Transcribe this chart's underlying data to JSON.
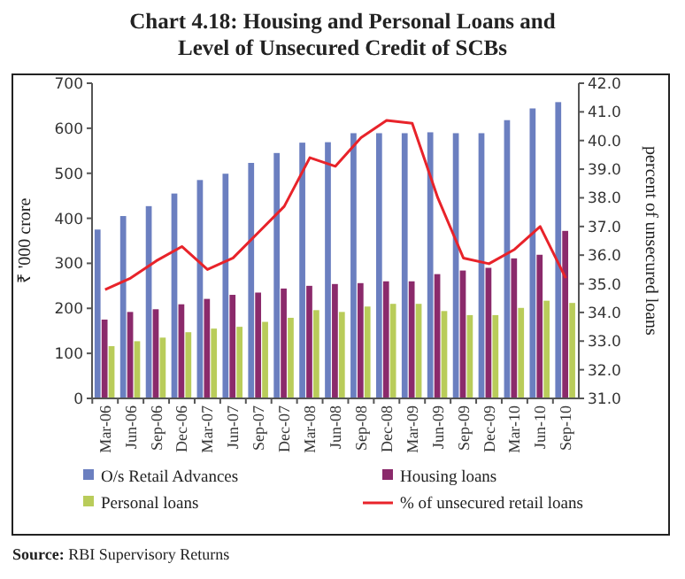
{
  "chart_data": {
    "type": "bar",
    "title": "Chart 4.18: Housing and Personal Loans and Level of Unsecured Credit of SCBs",
    "ylabel": "₹ '000 crore",
    "y2label": "percent of unsecured loans",
    "annotations": [
      "Source: RBI Supervisory Returns"
    ],
    "categories": [
      "Mar-06",
      "Jun-06",
      "Sep-06",
      "Dec-06",
      "Mar-07",
      "Jun-07",
      "Sep-07",
      "Dec-07",
      "Mar-08",
      "Jun-08",
      "Sep-08",
      "Dec-08",
      "Mar-09",
      "Jun-09",
      "Sep-09",
      "Dec-09",
      "Mar-10",
      "Jun-10",
      "Sep-10"
    ],
    "series": [
      {
        "name": "O/s Retail Advances",
        "color": "#6b7fc0",
        "values": [
          375,
          405,
          427,
          455,
          485,
          499,
          523,
          545,
          568,
          569,
          589,
          589,
          589,
          591,
          589,
          589,
          618,
          644,
          658
        ]
      },
      {
        "name": "Housing loans",
        "color": "#8b2a6b",
        "values": [
          175,
          192,
          198,
          209,
          221,
          230,
          235,
          244,
          250,
          254,
          256,
          260,
          260,
          276,
          284,
          290,
          311,
          319,
          372
        ]
      },
      {
        "name": "Personal loans",
        "color": "#b9cc5a",
        "values": [
          116,
          127,
          135,
          147,
          155,
          159,
          170,
          179,
          196,
          192,
          204,
          210,
          210,
          194,
          185,
          185,
          201,
          217,
          212
        ]
      },
      {
        "name": "% of unsecured retail loans",
        "type": "line",
        "axis": "y2",
        "color": "#e8232a",
        "values": [
          34.8,
          35.2,
          35.8,
          36.3,
          35.5,
          35.9,
          36.8,
          37.7,
          39.4,
          39.1,
          40.1,
          40.7,
          40.6,
          38.0,
          35.9,
          35.7,
          36.2,
          37.0,
          35.2
        ]
      }
    ],
    "ylim": [
      0,
      700
    ],
    "yticks": [
      0,
      100,
      200,
      300,
      400,
      500,
      600,
      700
    ],
    "y2lim": [
      31,
      42
    ],
    "y2ticks": [
      {
        "value": 31,
        "label": "31.0"
      },
      {
        "value": 32,
        "label": "32.0"
      },
      {
        "value": 33,
        "label": "33.0"
      },
      {
        "value": 34,
        "label": "34.0"
      },
      {
        "value": 35,
        "label": "35.0"
      },
      {
        "value": 36,
        "label": "36.0"
      },
      {
        "value": 37,
        "label": "37.0"
      },
      {
        "value": 38,
        "label": "38.0"
      },
      {
        "value": 39,
        "label": "39.0"
      },
      {
        "value": 40,
        "label": "40.0"
      },
      {
        "value": 41,
        "label": "41.0"
      },
      {
        "value": 42,
        "label": "42.0"
      }
    ],
    "legend": "bottom",
    "grid": false
  }
}
